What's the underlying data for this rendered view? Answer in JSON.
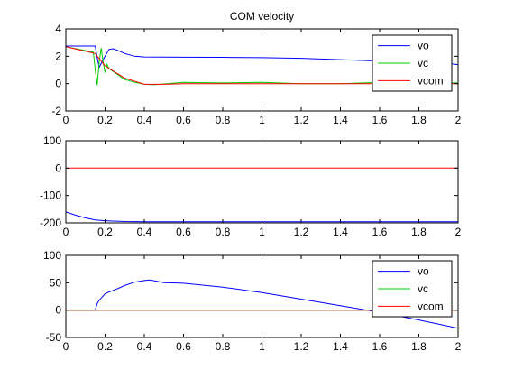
{
  "chart_data": [
    {
      "type": "line",
      "title": "COM velocity",
      "xlim": [
        0,
        2
      ],
      "ylim": [
        -2,
        4
      ],
      "xticks": [
        "0",
        "0.2",
        "0.4",
        "0.6",
        "0.8",
        "1",
        "1.2",
        "1.4",
        "1.6",
        "1.8",
        "2"
      ],
      "yticks": [
        "-2",
        "0",
        "2",
        "4"
      ],
      "grid": false,
      "legend": "top-right",
      "series": [
        {
          "name": "vo",
          "color": "#0000ff",
          "x": [
            0,
            0.15,
            0.16,
            0.17,
            0.2,
            0.22,
            0.24,
            0.27,
            0.3,
            0.35,
            0.4,
            0.6,
            0.8,
            1.0,
            1.2,
            1.4,
            1.6,
            1.8,
            1.9,
            2.0
          ],
          "y": [
            2.75,
            2.75,
            1.9,
            1.2,
            2.0,
            2.5,
            2.55,
            2.4,
            2.2,
            2.0,
            1.95,
            1.93,
            1.92,
            1.9,
            1.85,
            1.75,
            1.65,
            1.6,
            1.6,
            1.38
          ]
        },
        {
          "name": "vc",
          "color": "#00cc00",
          "x": [
            0,
            0.14,
            0.15,
            0.16,
            0.17,
            0.18,
            0.19,
            0.2,
            0.21,
            0.22,
            0.24,
            0.26,
            0.28,
            0.3,
            0.35,
            0.4,
            0.45,
            0.6,
            0.8,
            1.0,
            1.2,
            1.4,
            1.6,
            1.8,
            2.0
          ],
          "y": [
            2.7,
            2.3,
            1.0,
            -0.1,
            1.6,
            2.6,
            1.6,
            0.8,
            1.4,
            1.1,
            0.9,
            0.7,
            0.5,
            0.3,
            0.1,
            -0.05,
            -0.08,
            0.1,
            0.05,
            0.1,
            0.0,
            0.0,
            0.1,
            0.05,
            0.05
          ]
        },
        {
          "name": "vcom",
          "color": "#ff0000",
          "x": [
            0,
            0.15,
            0.2,
            0.3,
            0.4,
            0.5,
            0.6,
            0.8,
            1.0,
            1.5,
            2.0
          ],
          "y": [
            2.7,
            2.2,
            1.3,
            0.4,
            -0.05,
            -0.05,
            0.0,
            0.0,
            0.0,
            0.0,
            0.0
          ]
        }
      ]
    },
    {
      "type": "line",
      "xlim": [
        0,
        2
      ],
      "ylim": [
        -200,
        100
      ],
      "xticks": [
        "0",
        "0.2",
        "0.4",
        "0.6",
        "0.8",
        "1",
        "1.2",
        "1.4",
        "1.6",
        "1.8",
        "2"
      ],
      "yticks": [
        "-200",
        "-100",
        "0",
        "100"
      ],
      "grid": false,
      "series": [
        {
          "color": "#0000ff",
          "x": [
            0,
            0.05,
            0.1,
            0.15,
            0.2,
            0.3,
            0.4,
            0.6,
            1.0,
            1.5,
            2.0
          ],
          "y": [
            -160,
            -172,
            -182,
            -189,
            -192,
            -195,
            -196,
            -196,
            -196,
            -196,
            -196
          ]
        },
        {
          "color": "#ff0000",
          "x": [
            0,
            2.0
          ],
          "y": [
            0,
            0
          ]
        }
      ]
    },
    {
      "type": "line",
      "xlim": [
        0,
        2
      ],
      "ylim": [
        -50,
        100
      ],
      "xticks": [
        "0",
        "0.2",
        "0.4",
        "0.6",
        "0.8",
        "1",
        "1.2",
        "1.4",
        "1.6",
        "1.8",
        "2"
      ],
      "yticks": [
        "-50",
        "0",
        "50",
        "100"
      ],
      "grid": false,
      "legend": "top-right",
      "series": [
        {
          "name": "vo",
          "color": "#0000ff",
          "x": [
            0,
            0.14,
            0.15,
            0.16,
            0.17,
            0.18,
            0.2,
            0.22,
            0.25,
            0.3,
            0.35,
            0.4,
            0.43,
            0.5,
            0.6,
            0.8,
            1.0,
            1.2,
            1.4,
            1.55,
            1.6,
            1.8,
            2.0
          ],
          "y": [
            0,
            0,
            0,
            12,
            18,
            22,
            30,
            33,
            37,
            45,
            51,
            54,
            55,
            50,
            49,
            42,
            32,
            20,
            8,
            -1,
            -4,
            -18,
            -33
          ]
        },
        {
          "name": "vc",
          "color": "#00cc00",
          "x": [
            0,
            2.0
          ],
          "y": [
            0,
            0
          ]
        },
        {
          "name": "vcom",
          "color": "#ff0000",
          "x": [
            0,
            2.0
          ],
          "y": [
            0,
            0
          ]
        }
      ]
    }
  ]
}
